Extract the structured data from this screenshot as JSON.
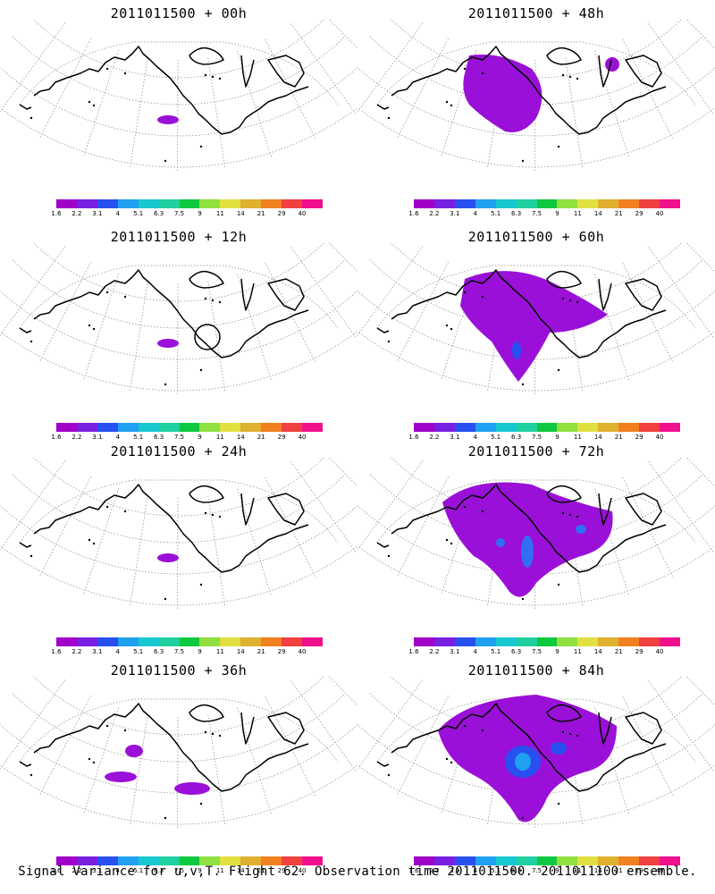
{
  "panels": [
    {
      "title": "2011011500 + 00h",
      "level": 0
    },
    {
      "title": "2011011500 + 48h",
      "level": 2
    },
    {
      "title": "2011011500 + 12h",
      "level": 0
    },
    {
      "title": "2011011500 + 60h",
      "level": 3
    },
    {
      "title": "2011011500 + 24h",
      "level": 0
    },
    {
      "title": "2011011500 + 72h",
      "level": 4
    },
    {
      "title": "2011011500 + 36h",
      "level": 1
    },
    {
      "title": "2011011500 + 84h",
      "level": 5
    }
  ],
  "colorbar": {
    "labels": [
      "1.6",
      "2.2",
      "3.1",
      "4",
      "5.1",
      "6.3",
      "7.5",
      "9",
      "11",
      "14",
      "21",
      "29",
      "40"
    ],
    "colors": [
      "#a000c8",
      "#7820e0",
      "#2850f0",
      "#20a0f0",
      "#18c8d0",
      "#20d0a0",
      "#10c840",
      "#90e040",
      "#e0e040",
      "#e0b030",
      "#f08020",
      "#f04040",
      "#f0108c"
    ]
  },
  "footer": "Signal Variance for u,v,T. Flight 62. Observation time 2011011500. 2011011100 ensemble."
}
